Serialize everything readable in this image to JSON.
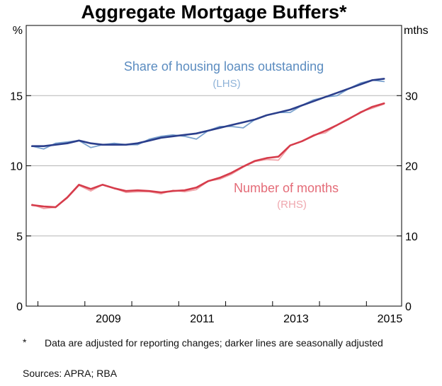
{
  "chart_data": {
    "type": "line",
    "title": "Aggregate Mortgage Buffers*",
    "left_axis": {
      "unit": "%",
      "ylim": [
        0,
        20
      ],
      "ticks": [
        0,
        5,
        10,
        15
      ]
    },
    "right_axis": {
      "unit": "mths",
      "ylim": [
        0,
        40
      ],
      "ticks": [
        0,
        10,
        20,
        30
      ]
    },
    "x_axis": {
      "xlim": [
        2007.75,
        2015.75
      ],
      "tick_labels": [
        "2009",
        "2011",
        "2013",
        "2015"
      ],
      "tick_values": [
        2009,
        2011,
        2013,
        2015
      ]
    },
    "grid": true,
    "series": [
      {
        "name": "Share of housing loans outstanding",
        "axis_label": "(LHS)",
        "axis": "left",
        "variant": "original",
        "color": "#7ba3cf",
        "x": [
          2007.875,
          2008.125,
          2008.375,
          2008.625,
          2008.875,
          2009.125,
          2009.375,
          2009.625,
          2009.875,
          2010.125,
          2010.375,
          2010.625,
          2010.875,
          2011.125,
          2011.375,
          2011.625,
          2011.875,
          2012.125,
          2012.375,
          2012.625,
          2012.875,
          2013.125,
          2013.375,
          2013.625,
          2013.875,
          2014.125,
          2014.375,
          2014.625,
          2014.875,
          2015.125,
          2015.375
        ],
        "y": [
          11.4,
          11.2,
          11.6,
          11.7,
          11.8,
          11.3,
          11.5,
          11.6,
          11.5,
          11.5,
          11.9,
          12.1,
          12.2,
          12.1,
          11.9,
          12.5,
          12.8,
          12.8,
          12.7,
          13.3,
          13.6,
          13.8,
          13.8,
          14.3,
          14.7,
          14.9,
          15.0,
          15.5,
          15.9,
          16.1,
          16.0
        ]
      },
      {
        "name": "",
        "axis": "left",
        "variant": "seasonally adjusted",
        "color": "#2b3f8c",
        "x": [
          2007.875,
          2008.125,
          2008.375,
          2008.625,
          2008.875,
          2009.125,
          2009.375,
          2009.625,
          2009.875,
          2010.125,
          2010.375,
          2010.625,
          2010.875,
          2011.125,
          2011.375,
          2011.625,
          2011.875,
          2012.125,
          2012.375,
          2012.625,
          2012.875,
          2013.125,
          2013.375,
          2013.625,
          2013.875,
          2014.125,
          2014.375,
          2014.625,
          2014.875,
          2015.125,
          2015.375
        ],
        "y": [
          11.4,
          11.4,
          11.5,
          11.6,
          11.8,
          11.6,
          11.5,
          11.5,
          11.5,
          11.6,
          11.8,
          12.0,
          12.1,
          12.2,
          12.3,
          12.5,
          12.7,
          12.9,
          13.1,
          13.3,
          13.6,
          13.8,
          14.0,
          14.3,
          14.6,
          14.9,
          15.2,
          15.5,
          15.8,
          16.1,
          16.2
        ]
      },
      {
        "name": "Number of months",
        "axis_label": "(RHS)",
        "axis": "right",
        "variant": "original",
        "color": "#f0a3a8",
        "x": [
          2007.875,
          2008.125,
          2008.375,
          2008.625,
          2008.875,
          2009.125,
          2009.375,
          2009.625,
          2009.875,
          2010.125,
          2010.375,
          2010.625,
          2010.875,
          2011.125,
          2011.375,
          2011.625,
          2011.875,
          2012.125,
          2012.375,
          2012.625,
          2012.875,
          2013.125,
          2013.375,
          2013.625,
          2013.875,
          2014.125,
          2014.375,
          2014.625,
          2014.875,
          2015.125,
          2015.375
        ],
        "y": [
          14.5,
          13.9,
          14.1,
          15.4,
          17.2,
          16.4,
          17.3,
          16.8,
          16.2,
          16.3,
          16.3,
          16.0,
          16.5,
          16.3,
          16.6,
          17.8,
          18.1,
          18.8,
          19.8,
          20.6,
          20.9,
          20.8,
          22.9,
          23.5,
          24.4,
          24.7,
          25.8,
          26.6,
          27.7,
          28.2,
          28.8
        ]
      },
      {
        "name": "",
        "axis": "right",
        "variant": "seasonally adjusted",
        "color": "#d63c4b",
        "x": [
          2007.875,
          2008.125,
          2008.375,
          2008.625,
          2008.875,
          2009.125,
          2009.375,
          2009.625,
          2009.875,
          2010.125,
          2010.375,
          2010.625,
          2010.875,
          2011.125,
          2011.375,
          2011.625,
          2011.875,
          2012.125,
          2012.375,
          2012.625,
          2012.875,
          2013.125,
          2013.375,
          2013.625,
          2013.875,
          2014.125,
          2014.375,
          2014.625,
          2014.875,
          2015.125,
          2015.375
        ],
        "y": [
          14.4,
          14.2,
          14.1,
          15.5,
          17.3,
          16.7,
          17.3,
          16.8,
          16.4,
          16.5,
          16.4,
          16.2,
          16.4,
          16.5,
          16.9,
          17.8,
          18.3,
          19.0,
          19.9,
          20.7,
          21.1,
          21.3,
          22.9,
          23.5,
          24.3,
          25.0,
          25.8,
          26.7,
          27.6,
          28.4,
          28.9
        ]
      }
    ]
  },
  "footnote": {
    "marker": "*",
    "text": "Data are adjusted for reporting changes; darker lines are seasonally adjusted"
  },
  "sources": "Sources:   APRA; RBA"
}
